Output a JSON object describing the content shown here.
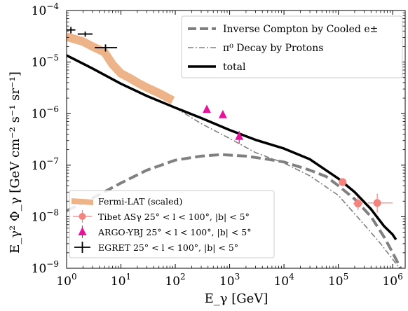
{
  "chart_data": {
    "type": "line",
    "title": "",
    "xlabel": "E_γ [GeV]",
    "ylabel": "E_γ² Φ_γ [GeV cm⁻² s⁻¹ sr⁻¹]",
    "xscale": "log",
    "yscale": "log",
    "xlim": [
      1,
      1700000
    ],
    "ylim": [
      1e-09,
      0.0001
    ],
    "x_ticks": [
      {
        "value": 1,
        "base": "10",
        "exp": "0"
      },
      {
        "value": 10,
        "base": "10",
        "exp": "1"
      },
      {
        "value": 100,
        "base": "10",
        "exp": "2"
      },
      {
        "value": 1000,
        "base": "10",
        "exp": "3"
      },
      {
        "value": 10000,
        "base": "10",
        "exp": "4"
      },
      {
        "value": 100000,
        "base": "10",
        "exp": "5"
      },
      {
        "value": 1000000,
        "base": "10",
        "exp": "6"
      }
    ],
    "y_ticks": [
      {
        "value": 1e-09,
        "base": "10",
        "exp": "−9"
      },
      {
        "value": 1e-08,
        "base": "10",
        "exp": "−8"
      },
      {
        "value": 1e-07,
        "base": "10",
        "exp": "−7"
      },
      {
        "value": 1e-06,
        "base": "10",
        "exp": "−6"
      },
      {
        "value": 1e-05,
        "base": "10",
        "exp": "−5"
      },
      {
        "value": 0.0001,
        "base": "10",
        "exp": "−4"
      }
    ],
    "grid": false,
    "legends": {
      "upper_right": [
        {
          "label": "Inverse Compton by Cooled e±",
          "style": "dashed",
          "color": "#808080"
        },
        {
          "label": "π⁰ Decay by Protons",
          "style": "dashdot",
          "color": "#808080"
        },
        {
          "label": "total",
          "style": "solid",
          "color": "#000000"
        }
      ],
      "lower_left": [
        {
          "label": "Fermi-LAT (scaled)",
          "style": "band",
          "color": "#EDB48A"
        },
        {
          "label": "Tibet ASγ 25° < l < 100°, |b| < 5°",
          "style": "circle",
          "color": "#F4837D"
        },
        {
          "label": "ARGO-YBJ 25° < l < 100°, |b| < 5°",
          "style": "triangle",
          "color": "#E8139B"
        },
        {
          "label": "EGRET 25° < l < 100°, |b| < 5°",
          "style": "cross",
          "color": "#000000"
        }
      ]
    },
    "series": [
      {
        "name": "Inverse Compton by Cooled e±",
        "style": "dashed",
        "color": "#808080",
        "x": [
          1,
          3,
          10,
          30,
          100,
          300,
          700,
          2000,
          5000,
          10000,
          30000,
          60000,
          100000,
          200000,
          400000,
          700000,
          1000000,
          1400000
        ],
        "y": [
          1.3e-08,
          2.3e-08,
          4.5e-08,
          8e-08,
          1.25e-07,
          1.5e-07,
          1.6e-07,
          1.5e-07,
          1.3e-07,
          1.15e-07,
          8e-08,
          6e-08,
          4e-08,
          2.2e-08,
          1e-08,
          4e-09,
          2e-09,
          1e-09
        ]
      },
      {
        "name": "π⁰ Decay by Protons",
        "style": "dashdot",
        "color": "#808080",
        "x": [
          100,
          300,
          1000,
          3000,
          10000,
          30000,
          100000,
          300000,
          600000,
          1000000,
          1700000
        ],
        "y": [
          1.3e-06,
          6.4e-07,
          3.3e-07,
          1.75e-07,
          1.1e-07,
          6.2e-08,
          2.6e-08,
          7e-09,
          3e-09,
          1.5e-09,
          7e-10
        ]
      },
      {
        "name": "total",
        "style": "solid",
        "color": "#000000",
        "x": [
          1,
          3,
          10,
          30,
          100,
          300,
          1000,
          3000,
          10000,
          30000,
          100000,
          200000,
          400000,
          700000,
          1000000,
          1150000
        ],
        "y": [
          1.35e-05,
          7.5e-06,
          3.8e-06,
          2.2e-06,
          1.3e-06,
          8.2e-07,
          4.8e-07,
          3.1e-07,
          2.1e-07,
          1.3e-07,
          5.5e-08,
          3e-08,
          1.4e-08,
          6.5e-09,
          4.5e-09,
          3.6e-09
        ]
      },
      {
        "name": "Fermi-LAT (scaled)",
        "style": "band",
        "color": "#EDB48A",
        "x": [
          1,
          2,
          3,
          5,
          7,
          10,
          15,
          20,
          30,
          50,
          90
        ],
        "y": [
          3.1e-05,
          2.5e-05,
          2e-05,
          1.55e-05,
          9e-06,
          6e-06,
          4.8e-06,
          4e-06,
          3.2e-06,
          2.5e-06,
          1.8e-06
        ]
      }
    ],
    "points": [
      {
        "name": "Tibet ASγ",
        "marker": "circle",
        "color": "#F4837D",
        "data": [
          {
            "x": 120000,
            "y": 4.7e-08,
            "xerr": [
              110000,
              130000
            ],
            "yerr": [
              4.4e-08,
              5e-08
            ]
          },
          {
            "x": 230000,
            "y": 1.8e-08,
            "xerr": [
              190000,
              280000
            ],
            "yerr": [
              1.35e-08,
              2.35e-08
            ]
          },
          {
            "x": 520000,
            "y": 1.85e-08,
            "xerr": [
              350000,
              1000000
            ],
            "yerr": [
              1.2e-08,
              2.8e-08
            ]
          }
        ]
      },
      {
        "name": "ARGO-YBJ",
        "marker": "triangle",
        "color": "#E8139B",
        "data": [
          {
            "x": 380,
            "y": 1.2e-06
          },
          {
            "x": 750,
            "y": 9.5e-07
          },
          {
            "x": 1500,
            "y": 3.6e-07,
            "yerr": [
              2.6e-07,
              4.6e-07
            ]
          }
        ]
      },
      {
        "name": "EGRET",
        "marker": "cross",
        "color": "#000000",
        "data": [
          {
            "x": 1.2,
            "y": 4.2e-05,
            "xerr": [
              1,
              1.45
            ],
            "yerr": [
              3.6e-05,
              4.8e-05
            ]
          },
          {
            "x": 2.2,
            "y": 3.5e-05,
            "xerr": [
              1.6,
              3
            ],
            "yerr": [
              3.1e-05,
              3.9e-05
            ]
          },
          {
            "x": 5.2,
            "y": 1.9e-05,
            "xerr": [
              3.3,
              8.5
            ],
            "yerr": [
              1.6e-05,
              2.2e-05
            ]
          }
        ]
      }
    ]
  }
}
